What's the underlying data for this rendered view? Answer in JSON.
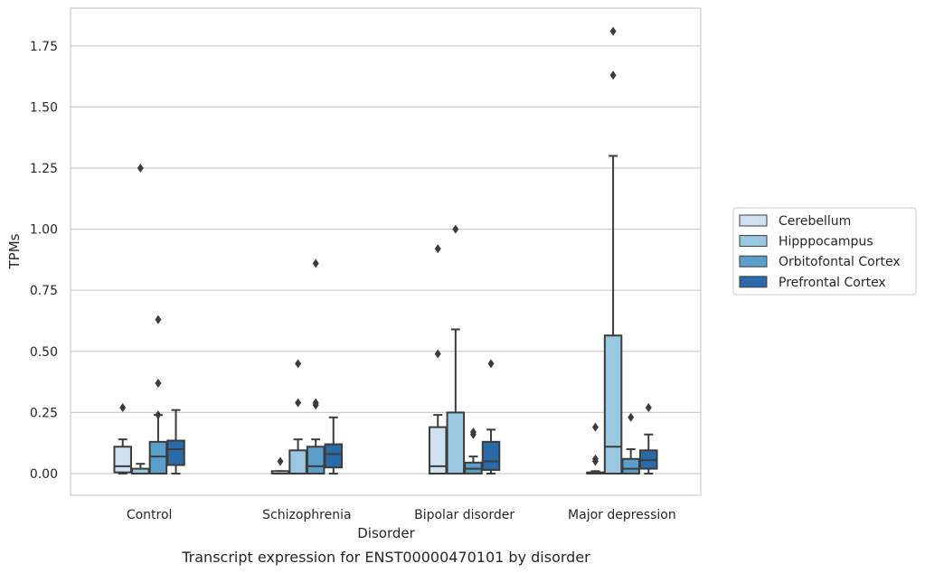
{
  "chart_data": {
    "type": "box",
    "caption": "Transcript expression for ENST00000470101 by disorder",
    "xlabel": "Disorder",
    "ylabel": "TPMs",
    "ylim": [
      -0.09,
      1.9
    ],
    "yticks": [
      "0.00",
      "0.25",
      "0.50",
      "0.75",
      "1.00",
      "1.25",
      "1.50",
      "1.75"
    ],
    "grid": true,
    "legend_position": "right",
    "categories": [
      "Control",
      "Schizophrenia",
      "Bipolar disorder",
      "Major depression"
    ],
    "series": [
      {
        "name": "Cerebellum",
        "color": "#d0e2f2",
        "boxes": [
          {
            "whislo": 0.0,
            "q1": 0.005,
            "med": 0.03,
            "q3": 0.11,
            "whishi": 0.14,
            "fliers": [
              0.27
            ]
          },
          {
            "whislo": 0.0,
            "q1": 0.0,
            "med": 0.0,
            "q3": 0.01,
            "whishi": 0.01,
            "fliers": [
              0.05
            ]
          },
          {
            "whislo": 0.0,
            "q1": 0.0,
            "med": 0.03,
            "q3": 0.19,
            "whishi": 0.24,
            "fliers": [
              0.49,
              0.92
            ]
          },
          {
            "whislo": 0.0,
            "q1": 0.0,
            "med": 0.0,
            "q3": 0.005,
            "whishi": 0.01,
            "fliers": [
              0.05,
              0.06,
              0.19
            ]
          }
        ]
      },
      {
        "name": "Hipppocampus",
        "color": "#9ac8e0",
        "boxes": [
          {
            "whislo": 0.0,
            "q1": 0.0,
            "med": 0.0,
            "q3": 0.02,
            "whishi": 0.04,
            "fliers": [
              1.25
            ]
          },
          {
            "whislo": 0.0,
            "q1": 0.0,
            "med": 0.0,
            "q3": 0.095,
            "whishi": 0.14,
            "fliers": [
              0.29,
              0.45
            ]
          },
          {
            "whislo": 0.0,
            "q1": 0.0,
            "med": 0.0,
            "q3": 0.25,
            "whishi": 0.59,
            "fliers": [
              1.0
            ]
          },
          {
            "whislo": 0.0,
            "q1": 0.0,
            "med": 0.11,
            "q3": 0.565,
            "whishi": 1.3,
            "fliers": [
              1.63,
              1.81
            ]
          }
        ]
      },
      {
        "name": "Orbitofontal Cortex",
        "color": "#5a9ec9",
        "boxes": [
          {
            "whislo": 0.0,
            "q1": 0.0,
            "med": 0.07,
            "q3": 0.13,
            "whishi": 0.24,
            "fliers": [
              0.24,
              0.37,
              0.63
            ]
          },
          {
            "whislo": 0.0,
            "q1": 0.0,
            "med": 0.03,
            "q3": 0.11,
            "whishi": 0.14,
            "fliers": [
              0.28,
              0.29,
              0.86
            ]
          },
          {
            "whislo": 0.0,
            "q1": 0.0,
            "med": 0.02,
            "q3": 0.045,
            "whishi": 0.07,
            "fliers": [
              0.16,
              0.17
            ]
          },
          {
            "whislo": 0.0,
            "q1": 0.0,
            "med": 0.02,
            "q3": 0.06,
            "whishi": 0.1,
            "fliers": [
              0.23
            ]
          }
        ]
      },
      {
        "name": "Prefrontal Cortex",
        "color": "#2b6aa9",
        "boxes": [
          {
            "whislo": 0.0,
            "q1": 0.035,
            "med": 0.1,
            "q3": 0.135,
            "whishi": 0.26,
            "fliers": []
          },
          {
            "whislo": 0.0,
            "q1": 0.025,
            "med": 0.08,
            "q3": 0.12,
            "whishi": 0.23,
            "fliers": []
          },
          {
            "whislo": 0.0,
            "q1": 0.015,
            "med": 0.05,
            "q3": 0.13,
            "whishi": 0.18,
            "fliers": [
              0.45
            ]
          },
          {
            "whislo": 0.0,
            "q1": 0.02,
            "med": 0.055,
            "q3": 0.095,
            "whishi": 0.16,
            "fliers": [
              0.27
            ]
          }
        ]
      }
    ]
  }
}
